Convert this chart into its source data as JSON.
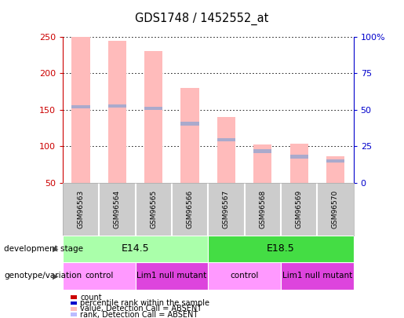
{
  "title": "GDS1748 / 1452552_at",
  "samples": [
    "GSM96563",
    "GSM96564",
    "GSM96565",
    "GSM96566",
    "GSM96567",
    "GSM96568",
    "GSM96569",
    "GSM96570"
  ],
  "pink_bar_top": [
    250,
    244,
    230,
    180,
    140,
    103,
    104,
    86
  ],
  "pink_bar_bottom": [
    50,
    50,
    50,
    50,
    50,
    50,
    50,
    50
  ],
  "blue_bar_values": [
    154,
    155,
    152,
    131,
    109,
    93,
    86,
    80
  ],
  "ylim": [
    50,
    250
  ],
  "yticks_left": [
    50,
    100,
    150,
    200,
    250
  ],
  "ytick_labels_right": [
    "0",
    "25",
    "50",
    "75",
    "100%"
  ],
  "left_axis_color": "#cc0000",
  "right_axis_color": "#0000cc",
  "dev_stage_groups": [
    {
      "label": "E14.5",
      "start": 0,
      "end": 4,
      "color": "#aaffaa"
    },
    {
      "label": "E18.5",
      "start": 4,
      "end": 8,
      "color": "#44dd44"
    }
  ],
  "geno_groups": [
    {
      "label": "control",
      "start": 0,
      "end": 2,
      "color": "#ff99ff"
    },
    {
      "label": "Lim1 null mutant",
      "start": 2,
      "end": 4,
      "color": "#dd44dd"
    },
    {
      "label": "control",
      "start": 4,
      "end": 6,
      "color": "#ff99ff"
    },
    {
      "label": "Lim1 null mutant",
      "start": 6,
      "end": 8,
      "color": "#dd44dd"
    }
  ],
  "legend_items": [
    {
      "label": "count",
      "color": "#cc0000"
    },
    {
      "label": "percentile rank within the sample",
      "color": "#0000cc"
    },
    {
      "label": "value, Detection Call = ABSENT",
      "color": "#ffbbbb"
    },
    {
      "label": "rank, Detection Call = ABSENT",
      "color": "#bbbbff"
    }
  ],
  "pink_color": "#ffbbbb",
  "blue_color": "#aaaacc",
  "sample_box_color": "#cccccc",
  "bg_color": "#ffffff"
}
